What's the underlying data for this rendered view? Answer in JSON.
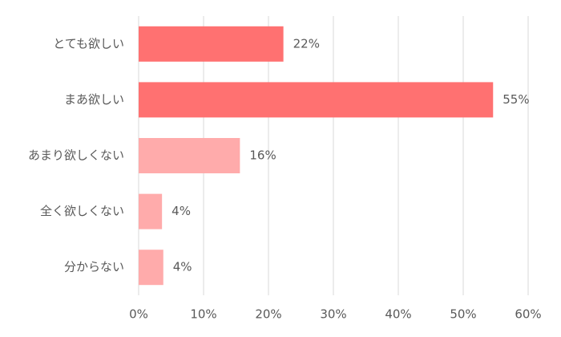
{
  "chart_data": {
    "type": "barh",
    "categories": [
      "とても欲しい",
      "まあ欲しい",
      "あまり欲しくない",
      "全く欲しくない",
      "分からない"
    ],
    "values": [
      22.3,
      54.6,
      15.6,
      3.6,
      3.8
    ],
    "value_labels": [
      "22%",
      "55%",
      "16%",
      "4%",
      "4%"
    ],
    "colors": [
      "#ff7171",
      "#ff7171",
      "#ffabab",
      "#ffabab",
      "#ffabab"
    ],
    "xlim": [
      0,
      60
    ],
    "xticks": [
      {
        "value": 0,
        "label": "0%"
      },
      {
        "value": 10,
        "label": "10%"
      },
      {
        "value": 20,
        "label": "20%"
      },
      {
        "value": 30,
        "label": "30%"
      },
      {
        "value": 40,
        "label": "40%"
      },
      {
        "value": 50,
        "label": "50%"
      },
      {
        "value": 60,
        "label": "60%"
      }
    ],
    "grid": true
  }
}
